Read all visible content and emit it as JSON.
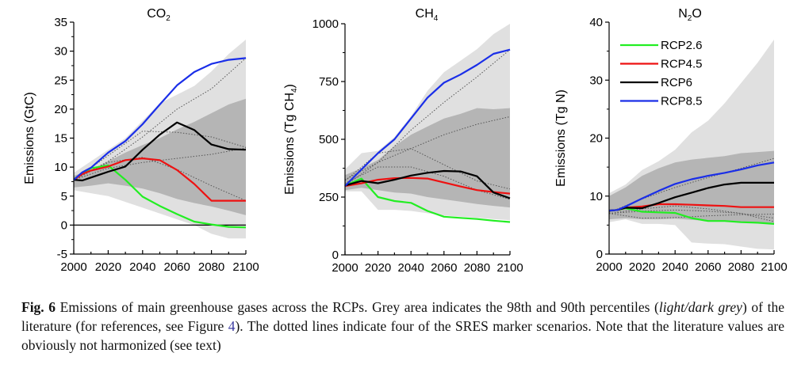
{
  "chart_data": [
    {
      "type": "line",
      "title": "CO2",
      "title_main": "CO",
      "title_sub": "2",
      "xlabel": "",
      "ylabel": "Emissions (GtC)",
      "xlim": [
        2000,
        2100
      ],
      "ylim": [
        -5,
        35
      ],
      "xticks": [
        2000,
        2020,
        2040,
        2060,
        2080,
        2100
      ],
      "yticks": [
        -5,
        0,
        5,
        10,
        15,
        20,
        25,
        30,
        35
      ],
      "ytick_labels": [
        "-5",
        "0",
        "5",
        "10",
        "15",
        "20",
        "25",
        "30",
        "35"
      ],
      "zero_line": true,
      "bands": {
        "p98": {
          "x": [
            2000,
            2010,
            2020,
            2030,
            2040,
            2050,
            2060,
            2070,
            2080,
            2090,
            2100
          ],
          "lower": [
            6.0,
            5.5,
            5.0,
            4.0,
            3.0,
            2.0,
            1.0,
            0.0,
            -1.5,
            -2.3,
            -2.3
          ],
          "upper": [
            9.0,
            11.0,
            13.0,
            15.0,
            18.0,
            21.0,
            22.5,
            24.0,
            26.5,
            29.5,
            32.0
          ]
        },
        "p90": {
          "x": [
            2000,
            2010,
            2020,
            2030,
            2040,
            2050,
            2060,
            2070,
            2080,
            2090,
            2100
          ],
          "lower": [
            6.5,
            6.8,
            7.2,
            6.8,
            6.3,
            5.5,
            4.5,
            3.8,
            3.2,
            2.5,
            1.7
          ],
          "upper": [
            8.5,
            9.5,
            11.0,
            12.5,
            13.8,
            15.0,
            16.5,
            17.8,
            19.3,
            20.8,
            21.8
          ]
        }
      },
      "series": [
        {
          "name": "RCP2.6",
          "color": "#22ee22",
          "x": [
            2000,
            2005,
            2010,
            2020,
            2030,
            2040,
            2050,
            2060,
            2070,
            2080,
            2090,
            2100
          ],
          "values": [
            7.9,
            8.9,
            9.8,
            10.3,
            7.8,
            4.9,
            3.3,
            1.9,
            0.6,
            0.1,
            -0.3,
            -0.4
          ]
        },
        {
          "name": "RCP4.5",
          "color": "#ee1111",
          "x": [
            2000,
            2005,
            2010,
            2020,
            2030,
            2040,
            2050,
            2060,
            2070,
            2080,
            2090,
            2100
          ],
          "values": [
            7.8,
            8.8,
            9.4,
            10.1,
            11.2,
            11.5,
            11.2,
            9.5,
            7.1,
            4.2,
            4.2,
            4.2
          ]
        },
        {
          "name": "RCP6",
          "color": "#000000",
          "x": [
            2000,
            2005,
            2010,
            2020,
            2030,
            2040,
            2050,
            2060,
            2070,
            2080,
            2090,
            2100
          ],
          "values": [
            7.8,
            7.7,
            8.2,
            9.2,
            10.1,
            13.0,
            15.6,
            17.7,
            16.4,
            13.9,
            13.1,
            13.0
          ]
        },
        {
          "name": "RCP8.5",
          "color": "#1a2ee8",
          "x": [
            2000,
            2005,
            2010,
            2020,
            2030,
            2040,
            2050,
            2060,
            2070,
            2080,
            2090,
            2100
          ],
          "values": [
            7.8,
            9.1,
            9.9,
            12.5,
            14.5,
            17.4,
            20.8,
            24.1,
            26.4,
            27.8,
            28.5,
            28.8
          ]
        }
      ],
      "sres_dotted": [
        {
          "x": [
            2000,
            2020,
            2040,
            2060,
            2080,
            2100
          ],
          "values": [
            7.8,
            11.0,
            15.2,
            20.0,
            23.5,
            28.8
          ]
        },
        {
          "x": [
            2000,
            2020,
            2040,
            2060,
            2080,
            2100
          ],
          "values": [
            7.8,
            12.0,
            16.2,
            16.0,
            15.2,
            13.4
          ]
        },
        {
          "x": [
            2000,
            2020,
            2040,
            2060,
            2080,
            2100
          ],
          "values": [
            7.8,
            9.8,
            10.8,
            11.5,
            12.2,
            13.3
          ]
        },
        {
          "x": [
            2000,
            2020,
            2040,
            2060,
            2080,
            2100
          ],
          "values": [
            7.8,
            10.8,
            11.7,
            9.6,
            6.8,
            4.2
          ]
        }
      ]
    },
    {
      "type": "line",
      "title": "CH4",
      "title_main": "CH",
      "title_sub": "4",
      "xlabel": "",
      "ylabel": "Emissions (Tg CH4)",
      "ylabel_main": "Emissions (Tg CH",
      "ylabel_sub": "4",
      "ylabel_end": ")",
      "xlim": [
        2000,
        2100
      ],
      "ylim": [
        0,
        1000
      ],
      "xticks": [
        2000,
        2020,
        2040,
        2060,
        2080,
        2100
      ],
      "yticks": [
        0,
        250,
        500,
        750,
        1000
      ],
      "ytick_labels": [
        "0",
        "250",
        "500",
        "750",
        "1000"
      ],
      "minor_yticks": [
        125,
        375,
        625,
        875
      ],
      "zero_line": false,
      "bands": {
        "p98": {
          "x": [
            2000,
            2010,
            2020,
            2030,
            2040,
            2050,
            2060,
            2070,
            2080,
            2090,
            2100
          ],
          "lower": [
            275,
            275,
            195,
            195,
            190,
            180,
            170,
            165,
            160,
            155,
            150
          ],
          "upper": [
            370,
            440,
            450,
            510,
            600,
            710,
            790,
            840,
            890,
            955,
            1000
          ]
        },
        "p90": {
          "x": [
            2000,
            2010,
            2020,
            2030,
            2040,
            2050,
            2060,
            2070,
            2080,
            2090,
            2100
          ],
          "lower": [
            280,
            290,
            280,
            270,
            265,
            250,
            240,
            230,
            220,
            212,
            205
          ],
          "upper": [
            345,
            375,
            410,
            470,
            520,
            555,
            590,
            610,
            635,
            630,
            635
          ]
        }
      },
      "series": [
        {
          "name": "RCP2.6",
          "color": "#22ee22",
          "x": [
            2000,
            2010,
            2020,
            2030,
            2040,
            2050,
            2060,
            2070,
            2080,
            2090,
            2100
          ],
          "values": [
            300,
            330,
            250,
            233,
            225,
            190,
            165,
            160,
            155,
            148,
            142
          ]
        },
        {
          "name": "RCP4.5",
          "color": "#ee1111",
          "x": [
            2000,
            2010,
            2020,
            2030,
            2040,
            2050,
            2060,
            2070,
            2080,
            2090,
            2100
          ],
          "values": [
            298,
            310,
            325,
            332,
            333,
            330,
            313,
            296,
            280,
            272,
            265
          ]
        },
        {
          "name": "RCP6",
          "color": "#000000",
          "x": [
            2000,
            2010,
            2020,
            2030,
            2040,
            2050,
            2060,
            2070,
            2080,
            2090,
            2100
          ],
          "values": [
            300,
            320,
            310,
            325,
            343,
            355,
            363,
            361,
            340,
            270,
            245
          ]
        },
        {
          "name": "RCP8.5",
          "color": "#1a2ee8",
          "x": [
            2000,
            2010,
            2020,
            2030,
            2040,
            2050,
            2060,
            2070,
            2080,
            2090,
            2100
          ],
          "values": [
            298,
            370,
            440,
            500,
            590,
            680,
            745,
            780,
            822,
            870,
            888
          ]
        }
      ],
      "sres_dotted": [
        {
          "x": [
            2000,
            2020,
            2040,
            2060,
            2080,
            2100
          ],
          "values": [
            300,
            400,
            540,
            660,
            770,
            888
          ]
        },
        {
          "x": [
            2000,
            2020,
            2040,
            2060,
            2080,
            2100
          ],
          "values": [
            325,
            400,
            460,
            520,
            565,
            598
          ]
        },
        {
          "x": [
            2000,
            2020,
            2040,
            2060,
            2080,
            2100
          ],
          "values": [
            320,
            440,
            460,
            390,
            320,
            285
          ]
        },
        {
          "x": [
            2000,
            2020,
            2040,
            2060,
            2080,
            2100
          ],
          "values": [
            310,
            380,
            380,
            340,
            280,
            240
          ]
        }
      ]
    },
    {
      "type": "line",
      "title": "N2O",
      "title_main": "N",
      "title_sub": "2",
      "title_end": "O",
      "xlabel": "",
      "ylabel": "Emissions (Tg N)",
      "xlim": [
        2000,
        2100
      ],
      "ylim": [
        0,
        40
      ],
      "xticks": [
        2000,
        2020,
        2040,
        2060,
        2080,
        2100
      ],
      "yticks": [
        0,
        10,
        20,
        30,
        40
      ],
      "ytick_labels": [
        "0",
        "10",
        "20",
        "30",
        "40"
      ],
      "minor_yticks": [
        5,
        15,
        25,
        35
      ],
      "zero_line": false,
      "legend": {
        "position": "top-left",
        "entries": [
          "RCP2.6",
          "RCP4.5",
          "RCP6",
          "RCP8.5"
        ]
      },
      "bands": {
        "p98": {
          "x": [
            2000,
            2010,
            2020,
            2030,
            2040,
            2050,
            2060,
            2070,
            2080,
            2090,
            2100
          ],
          "lower": [
            5.5,
            6.0,
            5.2,
            5.2,
            5.0,
            2.0,
            1.8,
            1.7,
            1.3,
            0.9,
            0.8
          ],
          "upper": [
            10.5,
            12.0,
            14.5,
            16.0,
            18.0,
            21.0,
            23.0,
            26.0,
            29.5,
            33.0,
            37.0
          ]
        },
        "p90": {
          "x": [
            2000,
            2010,
            2020,
            2030,
            2040,
            2050,
            2060,
            2070,
            2080,
            2090,
            2100
          ],
          "lower": [
            6.0,
            6.2,
            6.0,
            6.0,
            6.1,
            5.9,
            5.7,
            5.6,
            5.4,
            5.3,
            5.2
          ],
          "upper": [
            10.0,
            11.5,
            13.5,
            14.8,
            15.8,
            16.3,
            16.6,
            16.9,
            17.4,
            17.6,
            17.8
          ]
        }
      },
      "series": [
        {
          "name": "RCP2.6",
          "color": "#22ee22",
          "x": [
            2000,
            2005,
            2010,
            2020,
            2030,
            2040,
            2050,
            2060,
            2070,
            2080,
            2090,
            2100
          ],
          "values": [
            7.5,
            7.6,
            7.9,
            7.3,
            7.2,
            7.1,
            6.2,
            5.7,
            5.7,
            5.5,
            5.4,
            5.2
          ]
        },
        {
          "name": "RCP4.5",
          "color": "#ee1111",
          "x": [
            2000,
            2005,
            2010,
            2020,
            2030,
            2040,
            2050,
            2060,
            2070,
            2080,
            2090,
            2100
          ],
          "values": [
            7.5,
            7.6,
            8.0,
            8.2,
            8.6,
            8.6,
            8.5,
            8.4,
            8.3,
            8.1,
            8.1,
            8.1
          ]
        },
        {
          "name": "RCP6",
          "color": "#000000",
          "x": [
            2000,
            2005,
            2010,
            2020,
            2030,
            2040,
            2050,
            2060,
            2070,
            2080,
            2090,
            2100
          ],
          "values": [
            7.5,
            7.6,
            8.0,
            7.9,
            8.8,
            9.8,
            10.6,
            11.4,
            12.0,
            12.3,
            12.3,
            12.3
          ]
        },
        {
          "name": "RCP8.5",
          "color": "#1a2ee8",
          "x": [
            2000,
            2005,
            2010,
            2020,
            2030,
            2040,
            2050,
            2060,
            2070,
            2080,
            2090,
            2100
          ],
          "values": [
            7.5,
            7.6,
            8.2,
            9.6,
            10.9,
            12.1,
            12.9,
            13.5,
            14.0,
            14.6,
            15.3,
            15.8
          ]
        }
      ],
      "sres_dotted": [
        {
          "x": [
            2000,
            2020,
            2040,
            2060,
            2080,
            2100
          ],
          "values": [
            7.2,
            9.5,
            11.5,
            13.2,
            14.8,
            16.5
          ]
        },
        {
          "x": [
            2000,
            2020,
            2040,
            2060,
            2080,
            2100
          ],
          "values": [
            7.0,
            7.8,
            8.3,
            7.8,
            7.0,
            6.2
          ]
        },
        {
          "x": [
            2000,
            2020,
            2040,
            2060,
            2080,
            2100
          ],
          "values": [
            7.0,
            6.2,
            6.3,
            6.6,
            6.8,
            6.9
          ]
        },
        {
          "x": [
            2000,
            2020,
            2040,
            2060,
            2080,
            2100
          ],
          "values": [
            7.0,
            7.4,
            7.6,
            7.4,
            7.0,
            5.6
          ]
        }
      ]
    }
  ],
  "colors": {
    "light_grey": "#e0e0e0",
    "dark_grey": "#b5b5b5",
    "dotted": "#555555"
  },
  "caption": {
    "label": "Fig. 6",
    "text_1": " Emissions of main greenhouse gases across the RCPs. Grey area indicates the 98th and 90th percentiles (",
    "italic": "light/dark grey",
    "text_2": ") of the literature (for references, see Figure ",
    "link": "4",
    "text_3": "). The dotted lines indicate four of the SRES marker scenarios. Note that the literature values are obviously not harmonized (see text)"
  }
}
